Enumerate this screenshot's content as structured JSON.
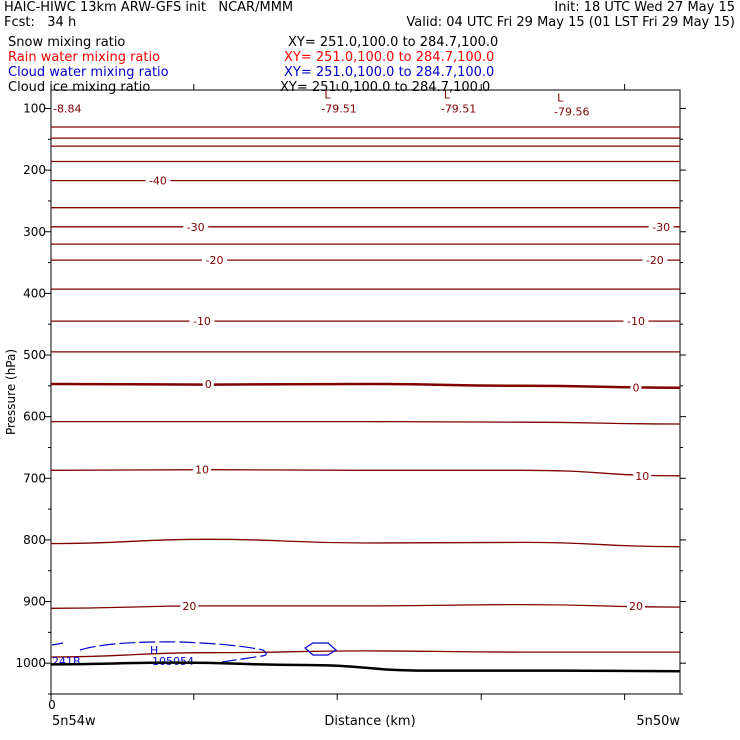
{
  "header": {
    "line1_left": "HAIC-HIWC 13km ARW-GFS init   NCAR/MMM",
    "line1_right": "Init: 18 UTC Wed 27 May 15",
    "line2_left": "Fcst:   34 h",
    "line2_right": "Valid: 04 UTC Fri 29 May 15 (01 LST Fri 29 May 15)"
  },
  "legend": [
    {
      "name": "Snow mixing ratio",
      "xy": "XY= 251.0,100.0 to 284.7,100.0",
      "color": "#000000"
    },
    {
      "name": "Rain water mixing ratio",
      "xy": "XY= 251.0,100.0 to 284.7,100.0",
      "color": "#ff0000"
    },
    {
      "name": "Cloud water mixing ratio",
      "xy": "XY= 251.0,100.0 to 284.7,100.0",
      "color": "#0000cc"
    },
    {
      "name": "Cloud ice mixing ratio",
      "xy": "XY= 251.0,100.0 to 284.7,100.0",
      "color": "#000000"
    }
  ],
  "chart_data": {
    "type": "contour",
    "ylabel": "Pressure (hPa)",
    "xlabel": "Distance (km)",
    "x_left_label": "5n54w",
    "x_right_label": "5n50w",
    "x_origin_label": "0",
    "ylim": [
      1050,
      70
    ],
    "yticks": [
      100,
      200,
      300,
      400,
      500,
      600,
      700,
      800,
      900,
      1000
    ],
    "contour_color": "#800000",
    "contour_interval": 5,
    "isotherms": [
      {
        "value": -60,
        "levels": [
          130,
          130,
          130,
          130,
          130
        ]
      },
      {
        "value": -55,
        "levels": [
          148,
          148,
          148,
          148,
          148
        ]
      },
      {
        "value": -50,
        "levels": [
          161,
          161,
          161,
          161,
          161
        ]
      },
      {
        "value": -45,
        "levels": [
          186,
          186,
          186,
          186,
          186
        ]
      },
      {
        "value": -40,
        "levels": [
          217,
          217,
          217,
          217,
          217
        ]
      },
      {
        "value": -35,
        "levels": [
          261,
          261,
          261,
          261,
          261
        ]
      },
      {
        "value": -30,
        "levels": [
          292,
          292,
          292,
          292,
          292
        ]
      },
      {
        "value": -25,
        "levels": [
          320,
          320,
          320,
          320,
          320
        ]
      },
      {
        "value": -20,
        "levels": [
          346,
          346,
          346,
          346,
          346
        ]
      },
      {
        "value": -15,
        "levels": [
          393,
          393,
          393,
          393,
          393
        ]
      },
      {
        "value": -10,
        "levels": [
          445,
          445,
          445,
          445,
          445
        ]
      },
      {
        "value": -5,
        "levels": [
          495,
          495,
          495,
          495,
          495
        ]
      },
      {
        "value": 0,
        "levels": [
          547,
          548,
          547,
          550,
          553
        ]
      },
      {
        "value": 5,
        "levels": [
          608,
          608,
          608,
          609,
          612
        ]
      },
      {
        "value": 10,
        "levels": [
          687,
          686,
          687,
          687,
          696
        ]
      },
      {
        "value": 15,
        "levels": [
          806,
          799,
          805,
          804,
          811
        ]
      },
      {
        "value": 20,
        "levels": [
          911,
          907,
          907,
          905,
          909
        ]
      },
      {
        "value": 25,
        "levels": [
          990,
          983,
          980,
          982,
          982
        ]
      }
    ],
    "labels": [
      {
        "text": "-40",
        "x": 0.17,
        "p": 217
      },
      {
        "text": "-30",
        "x": 0.23,
        "p": 292
      },
      {
        "text": "-30",
        "x": 0.97,
        "p": 292
      },
      {
        "text": "-20",
        "x": 0.26,
        "p": 346
      },
      {
        "text": "-20",
        "x": 0.96,
        "p": 346
      },
      {
        "text": "-10",
        "x": 0.24,
        "p": 445
      },
      {
        "text": "-10",
        "x": 0.93,
        "p": 445
      },
      {
        "text": "0",
        "x": 0.25,
        "p": 547
      },
      {
        "text": "0",
        "x": 0.93,
        "p": 553
      },
      {
        "text": "10",
        "x": 0.24,
        "p": 686
      },
      {
        "text": "10",
        "x": 0.94,
        "p": 696
      },
      {
        "text": "20",
        "x": 0.22,
        "p": 907
      },
      {
        "text": "20",
        "x": 0.93,
        "p": 907
      }
    ],
    "lows": [
      {
        "text": "-79.51",
        "x": 0.46,
        "p": 90
      },
      {
        "text": "-79.51",
        "x": 0.65,
        "p": 90
      },
      {
        "text": "-79.56",
        "x": 0.83,
        "p": 95
      }
    ],
    "topleft_value": "-8.84",
    "terrain_pressure": [
      1002,
      999,
      1003,
      1012,
      1012,
      1013
    ],
    "cloud_water": {
      "high_label": "H",
      "high_value": "105054",
      "left_value": "241B"
    }
  }
}
